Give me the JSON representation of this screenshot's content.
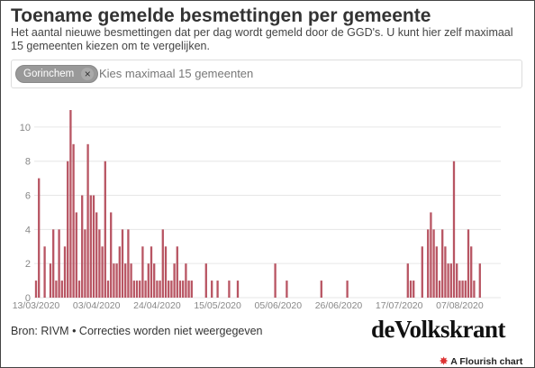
{
  "header": {
    "title": "Toename gemelde besmettingen per gemeente",
    "subtitle": "Het aantal nieuwe besmettingen dat per dag wordt gemeld door de GGD's. U kunt hier zelf maximaal 15 gemeenten kiezen om te vergelijken."
  },
  "selector": {
    "chip_label": "Gorinchem",
    "chip_close": "×",
    "placeholder": "Kies maximaal 15 gemeenten"
  },
  "footer": {
    "source": "Bron: RIVM • Correcties worden niet weergegeven",
    "brand": "deVolkskrant",
    "flourish_icon": "✸",
    "flourish_label": "A Flourish chart"
  },
  "colors": {
    "bar": "#b85563",
    "grid": "#e6e6e6",
    "axis_text": "#888888"
  },
  "chart_data": {
    "type": "bar",
    "x_start": "2020-03-13",
    "x_end": "2020-08-20",
    "ylim": [
      0,
      11
    ],
    "yticks": [
      0,
      2,
      4,
      6,
      8,
      10
    ],
    "xticks": [
      "13/03/2020",
      "03/04/2020",
      "24/04/2020",
      "15/05/2020",
      "05/06/2020",
      "26/06/2020",
      "17/07/2020",
      "07/08/2020"
    ],
    "grid": true,
    "series": [
      {
        "x": [
          "2020-03-13",
          "2020-03-14",
          "2020-03-16",
          "2020-03-18",
          "2020-03-19",
          "2020-03-20",
          "2020-03-21",
          "2020-03-22",
          "2020-03-23",
          "2020-03-24",
          "2020-03-25",
          "2020-03-26",
          "2020-03-27",
          "2020-03-28",
          "2020-03-29",
          "2020-03-30",
          "2020-03-31",
          "2020-04-01",
          "2020-04-02",
          "2020-04-03",
          "2020-04-04",
          "2020-04-05",
          "2020-04-06",
          "2020-04-07",
          "2020-04-08",
          "2020-04-09",
          "2020-04-10",
          "2020-04-11",
          "2020-04-12",
          "2020-04-13",
          "2020-04-14",
          "2020-04-15",
          "2020-04-16",
          "2020-04-17",
          "2020-04-18",
          "2020-04-19",
          "2020-04-20",
          "2020-04-21",
          "2020-04-22",
          "2020-04-23",
          "2020-04-24",
          "2020-04-25",
          "2020-04-26",
          "2020-04-27",
          "2020-04-28",
          "2020-04-29",
          "2020-04-30",
          "2020-05-01",
          "2020-05-02",
          "2020-05-03",
          "2020-05-04",
          "2020-05-05",
          "2020-05-06",
          "2020-05-11",
          "2020-05-13",
          "2020-05-15",
          "2020-05-19",
          "2020-05-22",
          "2020-06-04",
          "2020-06-08",
          "2020-06-20",
          "2020-06-29",
          "2020-07-20",
          "2020-07-21",
          "2020-07-22",
          "2020-07-25",
          "2020-07-27",
          "2020-07-28",
          "2020-07-29",
          "2020-07-30",
          "2020-07-31",
          "2020-08-01",
          "2020-08-02",
          "2020-08-03",
          "2020-08-04",
          "2020-08-05",
          "2020-08-06",
          "2020-08-07",
          "2020-08-08",
          "2020-08-09",
          "2020-08-10",
          "2020-08-11",
          "2020-08-12",
          "2020-08-14"
        ],
        "values": [
          1,
          7,
          3,
          2,
          4,
          1,
          4,
          1,
          3,
          8,
          11,
          9,
          5,
          1,
          6,
          4,
          9,
          6,
          6,
          5,
          4,
          3,
          8,
          1,
          5,
          2,
          2,
          3,
          4,
          2,
          4,
          2,
          1,
          1,
          1,
          3,
          1,
          2,
          3,
          2,
          1,
          1,
          4,
          3,
          1,
          1,
          2,
          3,
          1,
          1,
          2,
          1,
          1,
          2,
          1,
          1,
          1,
          1,
          2,
          1,
          1,
          1,
          2,
          1,
          1,
          3,
          4,
          5,
          4,
          3,
          1,
          4,
          3,
          2,
          2,
          8,
          2,
          1,
          1,
          1,
          4,
          3,
          1,
          2
        ]
      }
    ]
  }
}
